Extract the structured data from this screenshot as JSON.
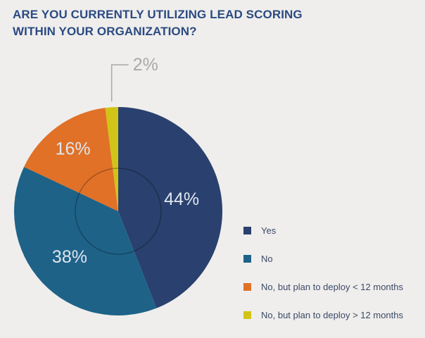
{
  "title": "ARE YOU CURRENTLY UTILIZING LEAD SCORING WITHIN YOUR ORGANIZATION?",
  "chart_data": {
    "type": "pie",
    "title": "ARE YOU CURRENTLY UTILIZING LEAD SCORING WITHIN YOUR ORGANIZATION?",
    "legend_position": "right",
    "slices": [
      {
        "label": "Yes",
        "value": 44,
        "display": "44%",
        "color": "#2a406e"
      },
      {
        "label": "No",
        "value": 38,
        "display": "38%",
        "color": "#1e6288"
      },
      {
        "label": "No, but plan to deploy < 12 months",
        "value": 16,
        "display": "16%",
        "color": "#e07127"
      },
      {
        "label": "No, but plan to deploy > 12 months",
        "value": 2,
        "display": "2%",
        "color": "#d1c417"
      }
    ]
  },
  "colors": {
    "background": "#efeeec",
    "title": "#2b4a82",
    "slice_label": "#dfe6f0",
    "callout": "#a9a9a9"
  }
}
